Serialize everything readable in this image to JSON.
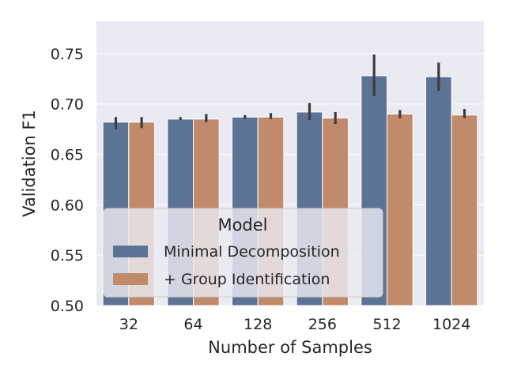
{
  "chart_data": {
    "type": "bar",
    "title": "",
    "xlabel": "Number of Samples",
    "ylabel": "Validation F1",
    "categories": [
      "32",
      "64",
      "128",
      "256",
      "512",
      "1024"
    ],
    "ylim": [
      0.5,
      0.782
    ],
    "yticks": [
      0.5,
      0.55,
      0.6,
      0.65,
      0.7,
      0.75
    ],
    "ytick_labels": [
      "0.50",
      "0.55",
      "0.60",
      "0.65",
      "0.70",
      "0.75"
    ],
    "grid": true,
    "legend": {
      "title": "Model",
      "position": "lower-left"
    },
    "series": [
      {
        "name": "Minimal Decomposition",
        "color": "#5d7396",
        "values": [
          0.682,
          0.685,
          0.687,
          0.692,
          0.728,
          0.727
        ],
        "err_low": [
          0.675,
          0.684,
          0.685,
          0.684,
          0.708,
          0.713
        ],
        "err_high": [
          0.687,
          0.687,
          0.689,
          0.701,
          0.749,
          0.741
        ]
      },
      {
        "name": "+ Group Identification",
        "color": "#c08a6b",
        "values": [
          0.682,
          0.685,
          0.687,
          0.686,
          0.69,
          0.689
        ],
        "err_low": [
          0.676,
          0.682,
          0.685,
          0.68,
          0.686,
          0.686
        ],
        "err_high": [
          0.687,
          0.69,
          0.691,
          0.692,
          0.694,
          0.695
        ]
      }
    ]
  }
}
